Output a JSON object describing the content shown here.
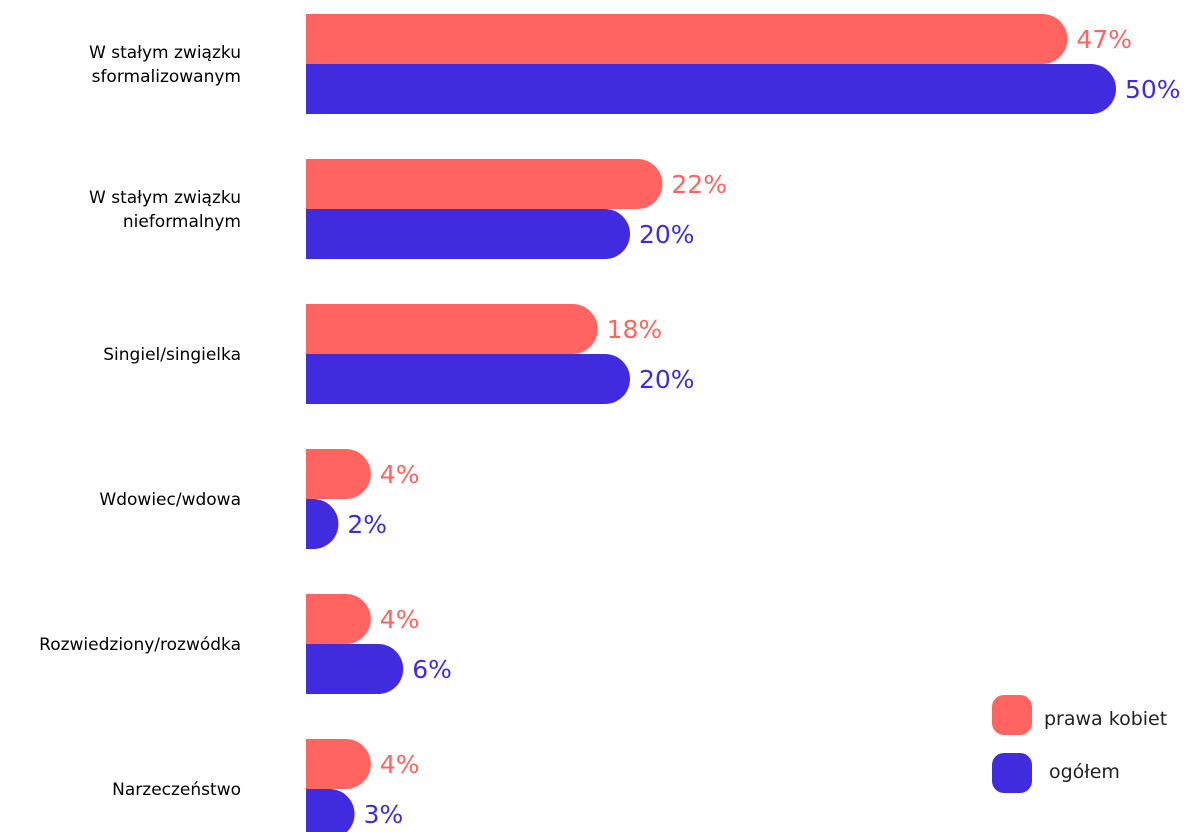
{
  "chart_data": {
    "type": "bar",
    "orientation": "horizontal",
    "categories": [
      [
        "W stałym związku",
        "sformalizowanym"
      ],
      [
        "W stałym związku",
        "nieformalnym"
      ],
      [
        "Singiel/singielka"
      ],
      [
        "Wdowiec/wdowa"
      ],
      [
        "Rozwiedziony/rozwódka"
      ],
      [
        "Narzeczeństwo"
      ]
    ],
    "series": [
      {
        "name": "prawa kobiet",
        "color": "#FF6461",
        "values": [
          47,
          22,
          18,
          4,
          4,
          4
        ],
        "labels": [
          "47%",
          "22%",
          "18%",
          "4%",
          "4%",
          "4%"
        ]
      },
      {
        "name": "ogółem",
        "color": "#402CDE",
        "values": [
          50,
          20,
          20,
          2,
          6,
          3
        ],
        "labels": [
          "50%",
          "20%",
          "20%",
          "2%",
          "6%",
          "3%"
        ]
      }
    ],
    "unit": "%",
    "xlim": [
      0,
      50
    ],
    "grid": false,
    "legend_position": "bottom-right"
  }
}
